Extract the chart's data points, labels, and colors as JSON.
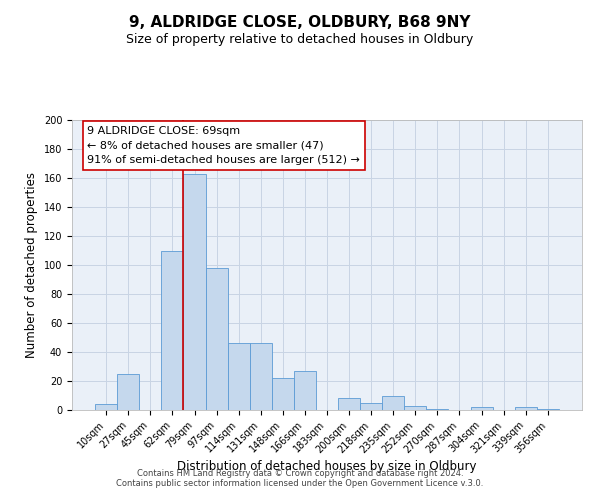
{
  "title": "9, ALDRIDGE CLOSE, OLDBURY, B68 9NY",
  "subtitle": "Size of property relative to detached houses in Oldbury",
  "xlabel": "Distribution of detached houses by size in Oldbury",
  "ylabel": "Number of detached properties",
  "categories": [
    "10sqm",
    "27sqm",
    "45sqm",
    "62sqm",
    "79sqm",
    "97sqm",
    "114sqm",
    "131sqm",
    "148sqm",
    "166sqm",
    "183sqm",
    "200sqm",
    "218sqm",
    "235sqm",
    "252sqm",
    "270sqm",
    "287sqm",
    "304sqm",
    "321sqm",
    "339sqm",
    "356sqm"
  ],
  "values": [
    4,
    25,
    0,
    110,
    163,
    98,
    46,
    46,
    22,
    27,
    0,
    8,
    5,
    10,
    3,
    1,
    0,
    2,
    0,
    2,
    1
  ],
  "bar_color": "#c5d8ed",
  "bar_edge_color": "#5b9bd5",
  "bar_width": 1.0,
  "ylim": [
    0,
    200
  ],
  "yticks": [
    0,
    20,
    40,
    60,
    80,
    100,
    120,
    140,
    160,
    180,
    200
  ],
  "annotation_line1": "9 ALDRIDGE CLOSE: 69sqm",
  "annotation_line2": "← 8% of detached houses are smaller (47)",
  "annotation_line3": "91% of semi-detached houses are larger (512) →",
  "red_line_x": 3.5,
  "background_color": "#ffffff",
  "plot_bg_color": "#eaf0f8",
  "grid_color": "#c8d4e4",
  "footer_line1": "Contains HM Land Registry data © Crown copyright and database right 2024.",
  "footer_line2": "Contains public sector information licensed under the Open Government Licence v.3.0.",
  "title_fontsize": 11,
  "subtitle_fontsize": 9,
  "annot_fontsize": 8,
  "xlabel_fontsize": 8.5,
  "ylabel_fontsize": 8.5,
  "tick_fontsize": 7,
  "footer_fontsize": 6
}
